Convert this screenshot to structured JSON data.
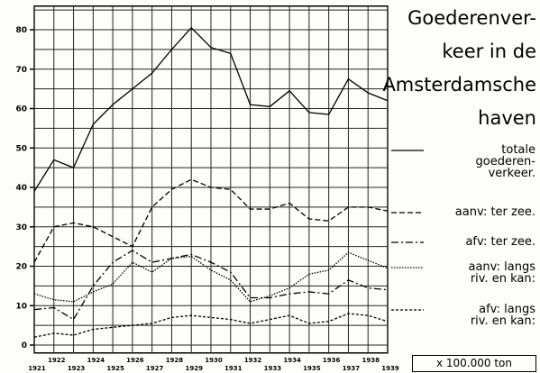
{
  "chart_data": {
    "type": "line",
    "title": "Goederenver-\nkeer in de\nAmsterdamsche\nhaven",
    "unit_note": "x 100.000 ton",
    "x": [
      1921,
      1922,
      1923,
      1924,
      1925,
      1926,
      1927,
      1928,
      1929,
      1930,
      1931,
      1932,
      1933,
      1934,
      1935,
      1936,
      1937,
      1938,
      1939
    ],
    "xlim": [
      1921,
      1939
    ],
    "ylim": [
      -2,
      86
    ],
    "yticks": [
      0,
      10,
      20,
      30,
      40,
      50,
      60,
      70,
      80
    ],
    "ygrid": [
      0,
      5,
      10,
      15,
      20,
      25,
      30,
      35,
      40,
      45,
      50,
      55,
      60,
      65,
      70,
      75,
      80,
      85
    ],
    "grid": true,
    "series": [
      {
        "name": "totale\ngoederen-\nverkeer.",
        "color": "#000",
        "dash": "solid",
        "values": [
          39,
          47,
          45,
          56,
          61,
          65,
          69,
          75,
          80.5,
          75.5,
          74,
          61,
          60.5,
          64.5,
          59,
          58.5,
          67.5,
          64,
          62
        ]
      },
      {
        "name": "aanv: ter zee.",
        "color": "#000",
        "dash": "dashed",
        "values": [
          21,
          30,
          31,
          30,
          27.5,
          25,
          35,
          39.5,
          42,
          40,
          39.5,
          34.5,
          34.5,
          36,
          32,
          31.5,
          35,
          35,
          34
        ]
      },
      {
        "name": "afv: ter zee.",
        "color": "#000",
        "dash": "dashdot",
        "values": [
          9,
          9.5,
          6.5,
          15,
          21,
          24,
          21,
          22,
          23,
          21,
          18.5,
          12,
          12,
          13,
          13.5,
          13,
          16.5,
          14.5,
          14
        ]
      },
      {
        "name": "aanv: langs\nriv. en kan:",
        "color": "#000",
        "dash": "dotted",
        "values": [
          13,
          11.5,
          11,
          13.5,
          15.5,
          21,
          18.5,
          22,
          22.5,
          19,
          16.5,
          11,
          12.5,
          14.5,
          18,
          19,
          23.5,
          21.5,
          19.5
        ]
      },
      {
        "name": "afv: langs\nriv. en kan:",
        "color": "#000",
        "dash": "shortdash",
        "values": [
          2,
          3,
          2.5,
          4,
          4.5,
          5,
          5.5,
          7,
          7.5,
          7,
          6.5,
          5.5,
          6.5,
          7.5,
          5.5,
          6,
          8,
          7.5,
          6
        ]
      }
    ]
  }
}
